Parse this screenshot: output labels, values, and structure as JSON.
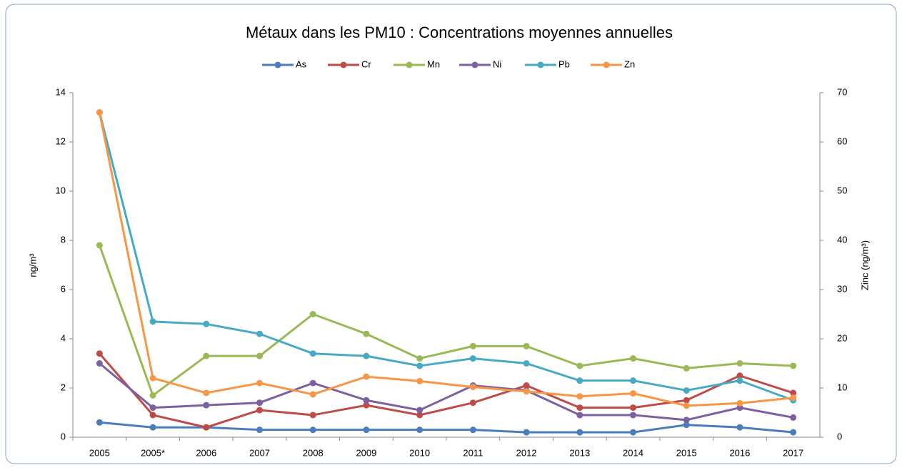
{
  "chart_data": {
    "type": "line",
    "title": "Métaux dans les PM10 : Concentrations moyennes annuelles",
    "y_label": "ng/m³",
    "y2_label": "Zinc (ng/m³)",
    "categories": [
      "2005",
      "2005*",
      "2006",
      "2007",
      "2008",
      "2009",
      "2010",
      "2011",
      "2012",
      "2013",
      "2014",
      "2015",
      "2016",
      "2017"
    ],
    "series": [
      {
        "name": "As",
        "color": "#4a7ebb",
        "values": [
          0.6,
          0.4,
          0.4,
          0.3,
          0.3,
          0.3,
          0.3,
          0.3,
          0.2,
          0.2,
          0.2,
          0.5,
          0.4,
          0.2
        ]
      },
      {
        "name": "Cr",
        "color": "#be4b48",
        "values": [
          3.4,
          0.9,
          0.4,
          1.1,
          0.9,
          1.3,
          0.9,
          1.4,
          2.1,
          1.2,
          1.2,
          1.5,
          2.5,
          1.8
        ]
      },
      {
        "name": "Mn",
        "color": "#98b954",
        "values": [
          7.8,
          1.7,
          3.3,
          3.3,
          5.0,
          4.2,
          3.2,
          3.7,
          3.7,
          2.9,
          3.2,
          2.8,
          3.0,
          2.9
        ]
      },
      {
        "name": "Ni",
        "color": "#7d60a0",
        "values": [
          3.0,
          1.2,
          1.3,
          1.4,
          2.2,
          1.5,
          1.1,
          2.1,
          1.9,
          0.9,
          0.9,
          0.7,
          1.2,
          0.8
        ]
      },
      {
        "name": "Pb",
        "color": "#46aac5",
        "values": [
          13.2,
          4.7,
          4.6,
          4.2,
          3.4,
          3.3,
          2.9,
          3.2,
          3.0,
          2.3,
          2.3,
          1.9,
          2.3,
          1.5
        ]
      },
      {
        "name": "Zn",
        "color": "#f79646",
        "axis": "y2",
        "values": [
          66,
          12,
          9,
          11,
          8.7,
          12.3,
          11.4,
          10.2,
          9.3,
          8.3,
          8.9,
          6.4,
          6.9,
          8.0
        ]
      }
    ],
    "ylim": [
      0,
      14
    ],
    "yticks": [
      0,
      2,
      4,
      6,
      8,
      10,
      12,
      14
    ],
    "y2lim": [
      0,
      70
    ],
    "y2ticks": [
      0,
      10,
      20,
      30,
      40,
      50,
      60,
      70
    ],
    "legend": "top"
  }
}
